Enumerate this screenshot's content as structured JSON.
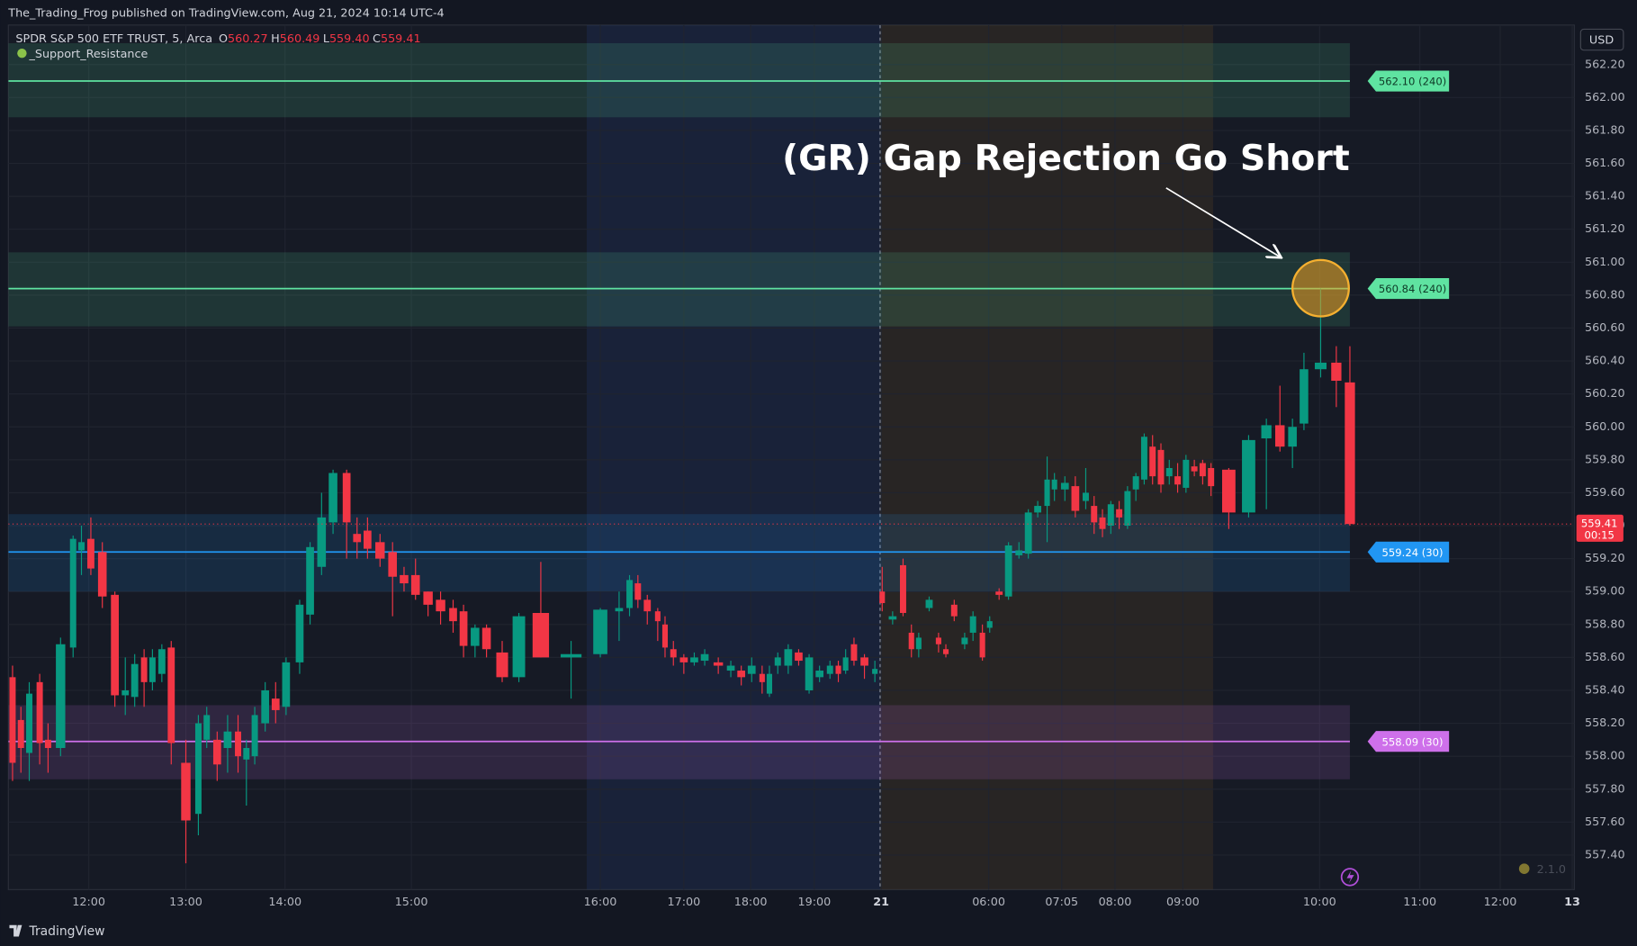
{
  "header": {
    "published": "The_Trading_Frog published on TradingView.com, Aug 21, 2024 10:14 UTC-4",
    "currency": "USD",
    "brand": "TradingView",
    "version": "2.1.0"
  },
  "legend": {
    "symbol": "SPDR S&P 500 ETF TRUST, 5, Arca",
    "ohlc": [
      {
        "key": "O",
        "value": "560.27"
      },
      {
        "key": "H",
        "value": "560.49"
      },
      {
        "key": "L",
        "value": "559.40"
      },
      {
        "key": "C",
        "value": "559.41"
      }
    ],
    "indicator": "_Support_Resistance"
  },
  "chart_data": {
    "type": "candlestick",
    "annotation": "(GR) Gap Rejection Go Short",
    "up_color": "#089981",
    "down_color": "#f23645",
    "grid": true,
    "xlim": [
      0.8,
      150.8
    ],
    "ylim": [
      557.19,
      562.44
    ],
    "xticks": [
      {
        "value": 8.5,
        "label": "12:00"
      },
      {
        "value": 17.8,
        "label": "13:00"
      },
      {
        "value": 27.3,
        "label": "14:00"
      },
      {
        "value": 39.4,
        "label": "15:00"
      },
      {
        "value": 57.5,
        "label": "16:00"
      },
      {
        "value": 65.5,
        "label": "17:00"
      },
      {
        "value": 71.9,
        "label": "18:00"
      },
      {
        "value": 78.0,
        "label": "19:00"
      },
      {
        "value": 84.4,
        "label": "21"
      },
      {
        "value": 94.7,
        "label": "06:00"
      },
      {
        "value": 101.7,
        "label": "07:05"
      },
      {
        "value": 106.8,
        "label": "08:00"
      },
      {
        "value": 113.3,
        "label": "09:00"
      },
      {
        "value": 126.4,
        "label": "10:00"
      },
      {
        "value": 136.0,
        "label": "11:00"
      },
      {
        "value": 143.7,
        "label": "12:00"
      },
      {
        "value": 150.6,
        "label": "13"
      }
    ],
    "yticks": [
      {
        "value": 557.4,
        "label": "557.40"
      },
      {
        "value": 557.6,
        "label": "557.60"
      },
      {
        "value": 557.8,
        "label": "557.80"
      },
      {
        "value": 558.0,
        "label": "558.00"
      },
      {
        "value": 558.2,
        "label": "558.20"
      },
      {
        "value": 558.4,
        "label": "558.40"
      },
      {
        "value": 558.6,
        "label": "558.60"
      },
      {
        "value": 558.8,
        "label": "558.80"
      },
      {
        "value": 559.0,
        "label": "559.00"
      },
      {
        "value": 559.2,
        "label": "559.20"
      },
      {
        "value": 559.4,
        "label": "559.40"
      },
      {
        "value": 559.6,
        "label": "559.60"
      },
      {
        "value": 559.8,
        "label": "559.80"
      },
      {
        "value": 560.0,
        "label": "560.00"
      },
      {
        "value": 560.2,
        "label": "560.20"
      },
      {
        "value": 560.4,
        "label": "560.40"
      },
      {
        "value": 560.6,
        "label": "560.60"
      },
      {
        "value": 560.8,
        "label": "560.80"
      },
      {
        "value": 561.0,
        "label": "561.00"
      },
      {
        "value": 561.2,
        "label": "561.20"
      },
      {
        "value": 561.4,
        "label": "561.40"
      },
      {
        "value": 561.6,
        "label": "561.60"
      },
      {
        "value": 561.8,
        "label": "561.80"
      },
      {
        "value": 562.0,
        "label": "562.00"
      },
      {
        "value": 562.2,
        "label": "562.20"
      }
    ],
    "sessions": [
      {
        "from": 56.2,
        "to": 84.3,
        "color": "#2a4fa0"
      },
      {
        "from": 84.3,
        "to": 116.2,
        "color": "#8a6420"
      }
    ],
    "session_break": 84.3,
    "levels": [
      {
        "value": 562.1,
        "label": "562.10 (240)",
        "color": "#5fe3a1",
        "label_text_color": "#0e3a26",
        "zone": [
          561.88,
          562.33
        ]
      },
      {
        "value": 560.84,
        "label": "560.84 (240)",
        "color": "#5fe3a1",
        "label_text_color": "#0e3a26",
        "zone": [
          560.61,
          561.06
        ]
      },
      {
        "value": 559.24,
        "label": "559.24 (30)",
        "color": "#2196f3",
        "label_text_color": "#ffffff",
        "zone": [
          559.0,
          559.47
        ]
      },
      {
        "value": 558.09,
        "label": "558.09 (30)",
        "color": "#ce70ea",
        "label_text_color": "#ffffff",
        "zone": [
          557.86,
          558.31
        ]
      }
    ],
    "last_price": {
      "value": 559.41,
      "countdown": "00:15",
      "color": "#f23645"
    },
    "x": [
      1.2,
      2.0,
      2.8,
      3.8,
      4.6,
      5.8,
      7.0,
      7.8,
      8.7,
      9.8,
      11.0,
      12.0,
      12.9,
      13.8,
      14.6,
      15.5,
      16.4,
      17.8,
      19.0,
      19.8,
      20.8,
      21.8,
      22.8,
      23.6,
      24.4,
      25.4,
      26.4,
      27.4,
      28.7,
      29.7,
      30.8,
      31.9,
      33.2,
      34.2,
      35.2,
      36.4,
      37.6,
      38.7,
      39.8,
      41.0,
      42.2,
      43.4,
      44.4,
      45.5,
      46.6,
      48.1,
      49.7,
      51.8,
      54.7,
      57.5,
      59.3,
      60.3,
      61.1,
      62.0,
      63.0,
      63.7,
      64.5,
      65.5,
      66.5,
      67.5,
      68.8,
      70.0,
      71.0,
      72.0,
      73.0,
      73.7,
      74.5,
      75.5,
      76.5,
      77.5,
      78.5,
      79.5,
      80.3,
      81.0,
      81.8,
      82.8,
      83.8,
      84.5,
      85.5,
      86.5,
      87.3,
      88.0,
      89.0,
      89.9,
      90.6,
      91.4,
      92.4,
      93.2,
      94.1,
      94.8,
      95.7,
      96.6,
      97.6,
      98.5,
      99.4,
      100.3,
      101.0,
      102.0,
      103.0,
      104.0,
      104.8,
      105.6,
      106.4,
      107.2,
      108.0,
      108.8,
      109.6,
      110.4,
      111.2,
      112.0,
      112.8,
      113.6,
      114.4,
      115.2,
      116.0,
      117.7,
      119.6,
      121.3,
      122.6,
      123.8,
      124.9,
      126.5,
      128.0,
      129.3
    ],
    "open": [
      558.48,
      558.22,
      558.02,
      558.45,
      558.1,
      558.05,
      558.66,
      559.25,
      559.32,
      559.24,
      558.98,
      558.37,
      558.36,
      558.6,
      558.45,
      558.5,
      558.66,
      557.96,
      557.65,
      558.1,
      558.1,
      558.05,
      558.15,
      557.98,
      558.0,
      558.2,
      558.35,
      558.3,
      558.57,
      558.86,
      559.15,
      559.42,
      559.72,
      559.35,
      559.37,
      559.3,
      559.24,
      559.1,
      559.1,
      559.0,
      558.95,
      558.9,
      558.88,
      558.67,
      558.78,
      558.63,
      558.48,
      558.87,
      558.6,
      558.62,
      558.88,
      558.9,
      559.05,
      558.95,
      558.88,
      558.8,
      558.65,
      558.6,
      558.57,
      558.58,
      558.57,
      558.52,
      558.52,
      558.5,
      558.5,
      558.38,
      558.55,
      558.55,
      558.63,
      558.4,
      558.48,
      558.5,
      558.55,
      558.52,
      558.68,
      558.6,
      558.5,
      559.0,
      558.83,
      559.16,
      558.75,
      558.65,
      558.9,
      558.72,
      558.65,
      558.92,
      558.68,
      558.75,
      558.75,
      558.78,
      559.0,
      558.97,
      559.22,
      559.23,
      559.48,
      559.52,
      559.62,
      559.62,
      559.64,
      559.55,
      559.52,
      559.45,
      559.4,
      559.5,
      559.4,
      559.62,
      559.68,
      559.88,
      559.86,
      559.7,
      559.7,
      559.63,
      559.76,
      559.78,
      559.75,
      559.74,
      559.48,
      559.93,
      560.01,
      559.88,
      560.02,
      560.35,
      560.39,
      560.27
    ],
    "high": [
      558.55,
      558.3,
      558.45,
      558.5,
      558.2,
      558.72,
      559.34,
      559.4,
      559.45,
      559.3,
      559.0,
      558.6,
      558.62,
      558.65,
      558.65,
      558.68,
      558.7,
      558.1,
      558.25,
      558.3,
      558.15,
      558.25,
      558.25,
      558.1,
      558.3,
      558.45,
      558.45,
      558.6,
      558.95,
      559.3,
      559.6,
      559.74,
      559.74,
      559.45,
      559.45,
      559.35,
      559.3,
      559.15,
      559.2,
      559.0,
      559.0,
      558.95,
      558.92,
      558.8,
      558.8,
      558.7,
      558.87,
      559.18,
      558.7,
      558.9,
      559.0,
      559.1,
      559.1,
      558.98,
      558.9,
      558.85,
      558.7,
      558.62,
      558.63,
      558.65,
      558.6,
      558.58,
      558.55,
      558.6,
      558.55,
      558.55,
      558.63,
      558.68,
      558.65,
      558.62,
      558.55,
      558.58,
      558.58,
      558.65,
      558.72,
      558.62,
      558.58,
      559.15,
      558.88,
      559.2,
      558.8,
      558.75,
      558.97,
      558.75,
      558.68,
      558.95,
      558.75,
      558.88,
      558.8,
      558.85,
      559.02,
      559.3,
      559.3,
      559.5,
      559.55,
      559.82,
      559.72,
      559.7,
      559.7,
      559.75,
      559.58,
      559.5,
      559.55,
      559.55,
      559.64,
      559.72,
      559.96,
      559.95,
      559.9,
      559.8,
      559.78,
      559.83,
      559.8,
      559.8,
      559.78,
      559.75,
      559.95,
      560.05,
      560.25,
      560.05,
      560.45,
      560.84,
      560.49,
      560.49
    ],
    "low": [
      557.85,
      557.9,
      557.85,
      557.95,
      557.9,
      558.0,
      558.6,
      559.1,
      559.1,
      558.9,
      558.3,
      558.25,
      558.3,
      558.3,
      558.4,
      558.45,
      557.95,
      557.35,
      557.52,
      558.05,
      557.85,
      557.9,
      557.9,
      557.7,
      557.95,
      558.15,
      558.2,
      558.25,
      558.5,
      558.8,
      559.1,
      559.35,
      559.2,
      559.2,
      559.2,
      559.15,
      558.85,
      559.0,
      558.95,
      558.85,
      558.8,
      558.75,
      558.6,
      558.6,
      558.6,
      558.45,
      558.45,
      558.6,
      558.35,
      558.6,
      558.7,
      558.85,
      558.9,
      558.8,
      558.7,
      558.6,
      558.55,
      558.5,
      558.55,
      558.55,
      558.5,
      558.48,
      558.43,
      558.45,
      558.38,
      558.36,
      558.5,
      558.5,
      558.55,
      558.38,
      558.45,
      558.47,
      558.45,
      558.5,
      558.55,
      558.47,
      558.45,
      558.88,
      558.8,
      558.85,
      558.6,
      558.6,
      558.88,
      558.63,
      558.6,
      558.82,
      558.65,
      558.7,
      558.58,
      558.75,
      558.95,
      558.95,
      559.2,
      559.2,
      559.45,
      559.3,
      559.55,
      559.55,
      559.45,
      559.5,
      559.35,
      559.33,
      559.35,
      559.38,
      559.38,
      559.55,
      559.65,
      559.65,
      559.6,
      559.65,
      559.6,
      559.6,
      559.7,
      559.65,
      559.58,
      559.38,
      559.45,
      559.5,
      559.85,
      559.75,
      559.98,
      560.3,
      560.12,
      559.4
    ],
    "close": [
      557.96,
      558.05,
      558.38,
      558.08,
      558.05,
      558.68,
      559.32,
      559.3,
      559.14,
      558.97,
      558.37,
      558.4,
      558.56,
      558.45,
      558.6,
      558.65,
      558.08,
      557.61,
      558.2,
      558.25,
      557.95,
      558.15,
      558.0,
      558.05,
      558.25,
      558.4,
      558.28,
      558.57,
      558.92,
      559.27,
      559.45,
      559.72,
      559.42,
      559.3,
      559.26,
      559.2,
      559.09,
      559.05,
      558.98,
      558.92,
      558.88,
      558.82,
      558.67,
      558.78,
      558.65,
      558.48,
      558.85,
      558.6,
      558.62,
      558.89,
      558.9,
      559.07,
      558.95,
      558.88,
      558.82,
      558.66,
      558.6,
      558.57,
      558.6,
      558.62,
      558.55,
      558.55,
      558.48,
      558.55,
      558.45,
      558.5,
      558.6,
      558.65,
      558.58,
      558.6,
      558.52,
      558.55,
      558.5,
      558.6,
      558.58,
      558.55,
      558.53,
      558.93,
      558.85,
      558.87,
      558.65,
      558.72,
      558.95,
      558.68,
      558.62,
      558.85,
      558.72,
      558.85,
      558.6,
      558.82,
      558.98,
      559.28,
      559.25,
      559.48,
      559.52,
      559.68,
      559.68,
      559.66,
      559.49,
      559.6,
      559.42,
      559.38,
      559.53,
      559.45,
      559.61,
      559.7,
      559.94,
      559.7,
      559.65,
      559.75,
      559.65,
      559.8,
      559.73,
      559.7,
      559.64,
      559.48,
      559.92,
      560.01,
      559.88,
      560.0,
      560.35,
      560.39,
      560.28,
      559.41
    ]
  }
}
